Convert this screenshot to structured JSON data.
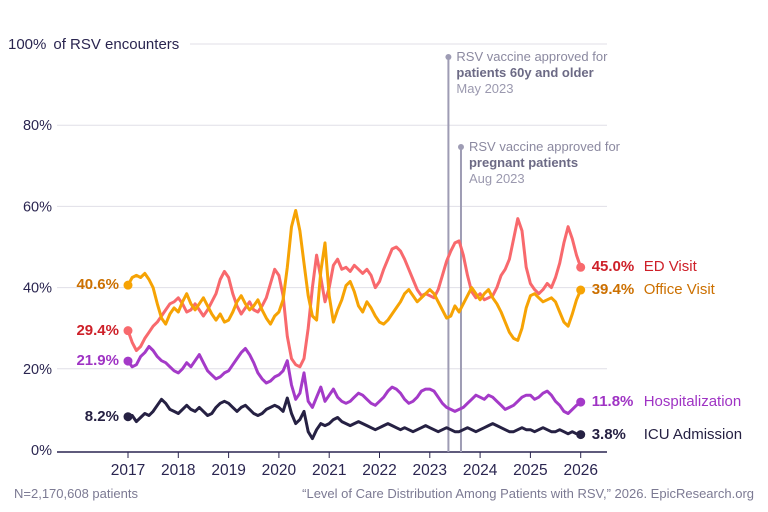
{
  "chart_data": {
    "type": "line",
    "title": "Level of Care Distribution Among Patients with RSV",
    "y_top_tick": "100%",
    "y_axis_label": "of RSV encounters",
    "x_start": 2017,
    "x_step": 0.0833333,
    "x_tick_labels": [
      "2017",
      "2018",
      "2019",
      "2020",
      "2021",
      "2022",
      "2023",
      "2024",
      "2025",
      "2026"
    ],
    "y_ticks": [
      0,
      20,
      40,
      60,
      80,
      100
    ],
    "y_tick_suffix": "%",
    "ylim": [
      0,
      100
    ],
    "xlim": [
      2017,
      2026
    ],
    "grid": true,
    "legend_position": "right-of-line-ends",
    "series": [
      {
        "name": "ED Visit",
        "color": "#f8696d",
        "label_color": "#ce2029",
        "start_label": "29.4%",
        "end_label": "45.0%",
        "values": [
          29.4,
          26.5,
          24.5,
          25.5,
          27.5,
          29.0,
          30.5,
          31.5,
          33.0,
          34.5,
          36.0,
          36.5,
          37.5,
          36.0,
          34.0,
          34.5,
          36.0,
          34.5,
          33.0,
          34.5,
          36.5,
          38.5,
          42.0,
          44.0,
          42.5,
          38.5,
          35.5,
          33.5,
          35.0,
          36.5,
          34.5,
          34.0,
          35.5,
          37.5,
          41.0,
          44.5,
          43.0,
          38.0,
          28.0,
          22.5,
          21.0,
          20.5,
          22.5,
          30.0,
          40.0,
          48.0,
          42.5,
          36.5,
          40.0,
          45.5,
          47.0,
          44.5,
          45.0,
          44.0,
          45.5,
          44.5,
          43.5,
          44.5,
          43.0,
          40.0,
          41.5,
          44.5,
          47.0,
          49.5,
          50.0,
          49.0,
          47.0,
          44.5,
          42.0,
          39.5,
          38.0,
          38.5,
          38.0,
          37.5,
          39.5,
          43.0,
          46.5,
          49.0,
          51.0,
          51.5,
          48.0,
          43.0,
          39.0,
          37.5,
          38.5,
          37.0,
          37.5,
          38.0,
          40.0,
          43.0,
          44.5,
          47.0,
          52.0,
          57.0,
          54.0,
          45.0,
          41.0,
          39.5,
          38.5,
          39.5,
          41.0,
          40.0,
          42.5,
          46.0,
          51.0,
          55.0,
          52.0,
          48.0,
          45.0
        ]
      },
      {
        "name": "Office Visit",
        "color": "#f6a304",
        "label_color": "#cc7000",
        "start_label": "40.6%",
        "end_label": "39.4%",
        "values": [
          40.6,
          42.5,
          43.0,
          42.5,
          43.5,
          42.0,
          40.0,
          36.0,
          32.5,
          31.0,
          33.5,
          35.0,
          34.0,
          36.5,
          38.5,
          36.0,
          34.5,
          36.0,
          37.5,
          35.5,
          33.5,
          32.0,
          33.5,
          31.5,
          32.0,
          34.0,
          36.5,
          38.0,
          36.0,
          34.5,
          35.5,
          37.0,
          34.5,
          32.5,
          31.0,
          33.0,
          34.0,
          37.0,
          45.0,
          55.0,
          59.0,
          54.0,
          46.0,
          38.0,
          33.0,
          32.0,
          44.0,
          51.0,
          38.0,
          31.5,
          34.5,
          37.0,
          40.5,
          41.5,
          39.0,
          35.5,
          34.0,
          36.5,
          35.0,
          33.0,
          31.5,
          31.0,
          32.0,
          33.5,
          35.0,
          36.5,
          38.5,
          39.5,
          38.0,
          36.5,
          37.5,
          38.5,
          39.5,
          38.5,
          36.5,
          34.5,
          32.5,
          33.0,
          35.5,
          34.0,
          36.0,
          38.0,
          40.0,
          38.5,
          37.0,
          38.5,
          39.5,
          37.5,
          36.0,
          34.0,
          31.5,
          29.0,
          27.5,
          27.0,
          30.0,
          35.0,
          38.0,
          38.5,
          37.5,
          36.5,
          37.0,
          37.5,
          36.5,
          34.0,
          31.5,
          30.5,
          33.5,
          37.0,
          39.4
        ]
      },
      {
        "name": "Hospitalization",
        "color": "#a43ac8",
        "label_color": "#9f33c4",
        "start_label": "21.9%",
        "end_label": "11.8%",
        "values": [
          21.9,
          20.5,
          21.0,
          23.0,
          24.0,
          25.5,
          24.5,
          23.0,
          22.0,
          21.5,
          20.5,
          19.5,
          19.0,
          20.0,
          21.5,
          20.5,
          22.0,
          23.5,
          21.5,
          19.5,
          18.5,
          17.5,
          18.0,
          19.0,
          19.5,
          21.0,
          22.5,
          24.0,
          25.0,
          23.5,
          21.5,
          19.0,
          17.5,
          16.5,
          17.0,
          18.0,
          18.5,
          19.5,
          22.0,
          16.0,
          12.5,
          14.0,
          19.0,
          12.0,
          10.5,
          13.0,
          15.5,
          12.0,
          13.5,
          15.0,
          13.0,
          12.0,
          11.5,
          12.0,
          13.0,
          14.0,
          13.5,
          12.5,
          11.5,
          11.0,
          12.0,
          13.0,
          14.5,
          15.5,
          15.0,
          14.0,
          12.5,
          11.5,
          12.0,
          13.0,
          14.5,
          15.0,
          15.0,
          14.5,
          13.0,
          11.5,
          10.5,
          10.0,
          9.5,
          10.0,
          10.5,
          11.5,
          12.5,
          13.5,
          13.0,
          12.5,
          13.5,
          13.0,
          12.0,
          11.0,
          10.0,
          10.5,
          11.0,
          12.0,
          13.0,
          13.5,
          13.5,
          12.5,
          13.0,
          14.0,
          14.5,
          13.5,
          12.0,
          11.0,
          9.5,
          9.0,
          10.0,
          11.0,
          11.8
        ]
      },
      {
        "name": "ICU Admission",
        "color": "#262143",
        "label_color": "#262143",
        "start_label": "8.2%",
        "end_label": "3.8%",
        "values": [
          8.2,
          8.5,
          7.0,
          8.0,
          9.0,
          8.5,
          9.5,
          11.0,
          12.5,
          11.5,
          10.0,
          9.5,
          9.0,
          10.0,
          11.0,
          10.0,
          9.5,
          10.5,
          9.5,
          8.5,
          9.0,
          10.5,
          11.5,
          12.0,
          11.5,
          10.5,
          9.5,
          10.5,
          11.0,
          10.0,
          9.0,
          8.5,
          9.0,
          10.0,
          10.5,
          11.0,
          10.5,
          9.5,
          12.8,
          9.0,
          6.5,
          7.5,
          9.5,
          4.5,
          2.8,
          5.0,
          6.5,
          6.0,
          6.5,
          7.5,
          8.0,
          7.0,
          6.5,
          6.0,
          6.5,
          7.0,
          6.5,
          6.0,
          5.5,
          5.0,
          5.5,
          6.0,
          6.5,
          6.0,
          5.5,
          5.0,
          5.5,
          5.0,
          4.5,
          5.0,
          5.5,
          6.0,
          5.5,
          5.0,
          4.5,
          5.0,
          5.5,
          5.0,
          4.5,
          4.5,
          5.0,
          5.5,
          5.0,
          4.5,
          5.0,
          5.5,
          6.0,
          6.5,
          6.0,
          5.5,
          5.0,
          4.5,
          4.5,
          5.0,
          5.5,
          5.0,
          5.0,
          4.5,
          5.0,
          5.5,
          5.0,
          4.5,
          4.5,
          5.0,
          4.5,
          4.0,
          4.5,
          4.0,
          3.8
        ]
      }
    ],
    "annotations": [
      {
        "x": 2023.37,
        "lines": [
          "RSV vaccine approved for",
          "patients 60y and older",
          "May 2023"
        ]
      },
      {
        "x": 2023.62,
        "lines": [
          "RSV vaccine approved for",
          "pregnant patients",
          "Aug 2023"
        ]
      }
    ],
    "annotation_line_color": "#9e9cb4",
    "gridline_color": "#e0dfe7",
    "axis_color": "#2a2550"
  },
  "footer": {
    "left": "N=2,170,608 patients",
    "right": "“Level of Care Distribution Among Patients with RSV,” 2026. EpicResearch.org"
  }
}
